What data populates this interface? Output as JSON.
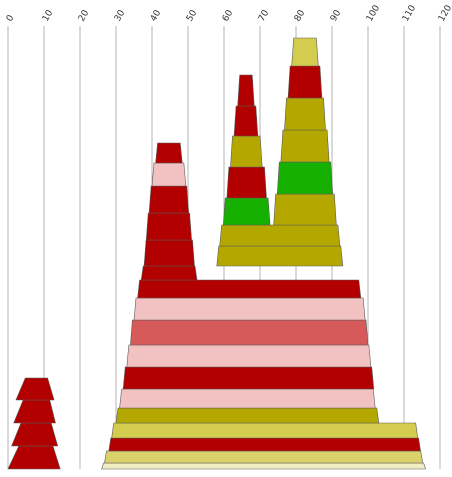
{
  "chart_data": {
    "type": "bar",
    "orientation": "stacked-trapezoid",
    "title": "",
    "xlabel": "",
    "ylabel": "",
    "x_ticks": [
      "0",
      "10",
      "20",
      "30",
      "40",
      "50",
      "60",
      "70",
      "80",
      "90",
      "100",
      "110",
      "120"
    ],
    "xlim": [
      0,
      120
    ],
    "grid": true,
    "colors": {
      "red": "#b20000",
      "pink": "#f2c2c2",
      "rose": "#d65a5a",
      "olive": "#b4a800",
      "green": "#16b000",
      "yellow": "#d4cc4e",
      "cream": "#f2eec4",
      "lightolive": "#d9d16a"
    },
    "stacks": [
      {
        "id": "stack-1",
        "segments": [
          {
            "x0": 0.0,
            "x1": 14.5,
            "bx0": 3.0,
            "bx1": 12.5,
            "color": "red"
          },
          {
            "x0": 1.0,
            "x1": 13.8,
            "bx0": 3.6,
            "bx1": 12.0,
            "color": "red"
          },
          {
            "x0": 1.6,
            "x1": 13.2,
            "bx0": 4.2,
            "bx1": 11.6,
            "color": "red"
          },
          {
            "x0": 2.2,
            "x1": 12.8,
            "bx0": 4.8,
            "bx1": 11.0,
            "color": "red"
          }
        ]
      },
      {
        "id": "stack-2",
        "segments": [
          {
            "x0": 26.0,
            "x1": 116.0,
            "color": "cream"
          },
          {
            "x0": 26.8,
            "x1": 115.2,
            "color": "lightolive"
          },
          {
            "x0": 28.0,
            "x1": 114.6,
            "color": "red"
          },
          {
            "x0": 28.8,
            "x1": 113.8,
            "color": "yellow"
          },
          {
            "x0": 30.0,
            "x1": 103.0,
            "color": "olive"
          },
          {
            "x0": 31.0,
            "x1": 102.0,
            "color": "pink"
          },
          {
            "x0": 32.0,
            "x1": 101.6,
            "color": "red"
          },
          {
            "x0": 33.0,
            "x1": 100.8,
            "color": "pink"
          },
          {
            "x0": 34.0,
            "x1": 100.0,
            "color": "rose"
          },
          {
            "x0": 35.0,
            "x1": 99.2,
            "color": "pink"
          },
          {
            "x0": 36.0,
            "x1": 98.0,
            "color": "red"
          },
          {
            "x0": 37.0,
            "x1": 52.5,
            "color": "red"
          },
          {
            "x0": 37.8,
            "x1": 51.8,
            "color": "red"
          },
          {
            "x0": 38.4,
            "x1": 51.0,
            "color": "red"
          },
          {
            "x0": 39.2,
            "x1": 50.2,
            "color": "red"
          },
          {
            "x0": 40.0,
            "x1": 49.4,
            "color": "pink"
          },
          {
            "x0": 41.0,
            "x1": 48.4,
            "color": "red"
          }
        ]
      },
      {
        "id": "stack-3",
        "segments": [
          {
            "x0": 58.0,
            "x1": 93.0,
            "color": "olive"
          },
          {
            "x0": 58.8,
            "x1": 92.2,
            "color": "olive"
          },
          {
            "x0": 59.8,
            "x1": 72.8,
            "color": "green"
          },
          {
            "x0": 60.8,
            "x1": 71.8,
            "color": "red"
          },
          {
            "x0": 61.8,
            "x1": 70.6,
            "color": "olive"
          },
          {
            "x0": 62.8,
            "x1": 69.4,
            "color": "red"
          },
          {
            "x0": 63.8,
            "x1": 68.4,
            "color": "red"
          },
          {
            "x0": 73.8,
            "x1": 91.2,
            "color": "olive"
          },
          {
            "x0": 74.8,
            "x1": 90.2,
            "color": "green"
          },
          {
            "x0": 75.8,
            "x1": 89.2,
            "color": "olive"
          },
          {
            "x0": 76.8,
            "x1": 88.2,
            "color": "olive"
          },
          {
            "x0": 77.8,
            "x1": 87.2,
            "color": "red"
          },
          {
            "x0": 78.8,
            "x1": 86.2,
            "color": "yellow"
          }
        ]
      }
    ]
  }
}
